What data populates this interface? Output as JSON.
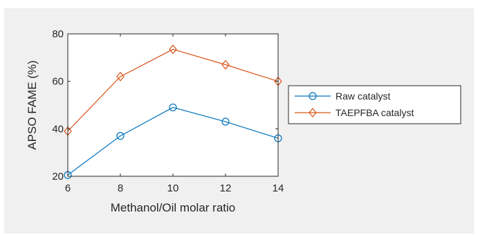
{
  "chart_data": {
    "type": "line",
    "title": "",
    "xlabel": "Methanol/Oil molar ratio",
    "ylabel": "APSO FAME (%)",
    "x": [
      6,
      8,
      10,
      12,
      14
    ],
    "xlim": [
      6,
      14
    ],
    "ylim": [
      20,
      80
    ],
    "xticks": [
      6,
      8,
      10,
      12,
      14
    ],
    "yticks": [
      20,
      40,
      60,
      80
    ],
    "grid": false,
    "legend_position": "right",
    "series": [
      {
        "name": "Raw catalyst",
        "values": [
          20.5,
          37,
          49,
          43,
          36
        ],
        "color": "#0072BD",
        "marker": "circle"
      },
      {
        "name": "TAEPFBA catalyst",
        "values": [
          39,
          62,
          73.5,
          67,
          60
        ],
        "color": "#D95319",
        "marker": "diamond"
      }
    ]
  }
}
